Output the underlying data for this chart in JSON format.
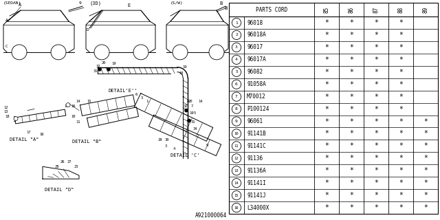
{
  "bg_color": "#ffffff",
  "line_color": "#000000",
  "text_color": "#000000",
  "diagram_label": "A921000064",
  "rows": [
    [
      "1",
      "96018",
      true,
      true,
      true,
      true,
      false
    ],
    [
      "2",
      "96018A",
      true,
      true,
      true,
      true,
      false
    ],
    [
      "3",
      "96017",
      true,
      true,
      true,
      true,
      false
    ],
    [
      "4",
      "96017A",
      true,
      true,
      true,
      true,
      false
    ],
    [
      "5",
      "96082",
      true,
      true,
      true,
      true,
      false
    ],
    [
      "6",
      "91058A",
      true,
      true,
      true,
      true,
      false
    ],
    [
      "7",
      "M70012",
      true,
      true,
      true,
      true,
      false
    ],
    [
      "8",
      "P100124",
      true,
      true,
      true,
      true,
      false
    ],
    [
      "9",
      "96061",
      true,
      true,
      true,
      true,
      true
    ],
    [
      "10",
      "91141B",
      true,
      true,
      true,
      true,
      true
    ],
    [
      "11",
      "91141C",
      true,
      true,
      true,
      true,
      true
    ],
    [
      "12",
      "91136",
      true,
      true,
      true,
      true,
      true
    ],
    [
      "13",
      "91136A",
      true,
      true,
      true,
      true,
      true
    ],
    [
      "14",
      "91141I",
      true,
      true,
      true,
      true,
      true
    ],
    [
      "15",
      "91141J",
      true,
      true,
      true,
      true,
      true
    ],
    [
      "16",
      "L34000X",
      true,
      true,
      true,
      true,
      true
    ]
  ]
}
